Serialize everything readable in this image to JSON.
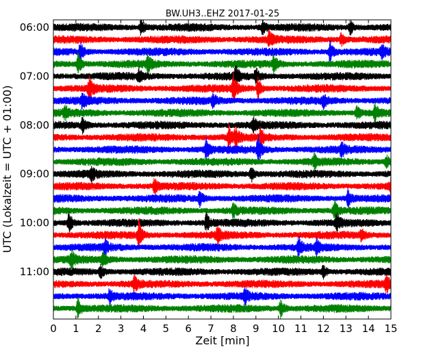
{
  "chart_data": {
    "type": "line",
    "title": "BW.UH3..EHZ 2017-01-25",
    "xlabel": "Zeit  [min]",
    "ylabel": "UTC (Lokalzeit = UTC + 01:00)",
    "xlim": [
      0,
      15
    ],
    "x_ticks": [
      0,
      1,
      2,
      3,
      4,
      5,
      6,
      7,
      8,
      9,
      10,
      11,
      12,
      13,
      14,
      15
    ],
    "x_tick_labels": [
      "0",
      "1",
      "2",
      "3",
      "4",
      "5",
      "6",
      "7",
      "8",
      "9",
      "10",
      "11",
      "12",
      "13",
      "14",
      "15"
    ],
    "y_ticks": [
      {
        "label": "06:00",
        "trace": 0
      },
      {
        "label": "07:00",
        "trace": 4
      },
      {
        "label": "08:00",
        "trace": 8
      },
      {
        "label": "09:00",
        "trace": 12
      },
      {
        "label": "10:00",
        "trace": 16
      },
      {
        "label": "11:00",
        "trace": 20
      }
    ],
    "trace_minutes": 15,
    "colors": [
      "#000000",
      "#ff0000",
      "#0000ff",
      "#008000"
    ],
    "traces": [
      {
        "start": "06:00",
        "color": "#000000",
        "events": [
          {
            "x": 3.9,
            "amp": 1.3
          },
          {
            "x": 9.3,
            "amp": 1.0
          },
          {
            "x": 13.2,
            "amp": 1.0
          }
        ]
      },
      {
        "start": "06:15",
        "color": "#ff0000",
        "events": [
          {
            "x": 9.6,
            "amp": 1.1
          },
          {
            "x": 12.8,
            "amp": 0.9
          }
        ]
      },
      {
        "start": "06:30",
        "color": "#0000ff",
        "events": [
          {
            "x": 1.2,
            "amp": 1.4
          },
          {
            "x": 12.3,
            "amp": 1.6
          },
          {
            "x": 14.6,
            "amp": 1.0
          }
        ]
      },
      {
        "start": "06:45",
        "color": "#008000",
        "events": [
          {
            "x": 1.1,
            "amp": 1.6
          },
          {
            "x": 4.2,
            "amp": 1.2
          },
          {
            "x": 9.8,
            "amp": 1.3
          }
        ]
      },
      {
        "start": "07:00",
        "color": "#000000",
        "events": [
          {
            "x": 3.8,
            "amp": 1.0
          },
          {
            "x": 8.1,
            "amp": 1.5
          },
          {
            "x": 9.0,
            "amp": 1.2
          }
        ]
      },
      {
        "start": "07:15",
        "color": "#ff0000",
        "events": [
          {
            "x": 1.6,
            "amp": 1.8
          },
          {
            "x": 8.0,
            "amp": 2.2
          },
          {
            "x": 9.1,
            "amp": 1.7
          }
        ]
      },
      {
        "start": "07:30",
        "color": "#0000ff",
        "events": [
          {
            "x": 1.3,
            "amp": 1.2
          },
          {
            "x": 7.1,
            "amp": 1.0
          },
          {
            "x": 12.0,
            "amp": 1.0
          }
        ]
      },
      {
        "start": "07:45",
        "color": "#008000",
        "events": [
          {
            "x": 0.5,
            "amp": 1.0
          },
          {
            "x": 13.5,
            "amp": 1.1
          },
          {
            "x": 14.3,
            "amp": 1.2
          }
        ]
      },
      {
        "start": "08:00",
        "color": "#000000",
        "events": [
          {
            "x": 1.3,
            "amp": 1.1
          },
          {
            "x": 8.9,
            "amp": 1.0
          }
        ]
      },
      {
        "start": "08:15",
        "color": "#ff0000",
        "events": [
          {
            "x": 7.8,
            "amp": 1.8
          },
          {
            "x": 8.1,
            "amp": 1.6
          },
          {
            "x": 9.2,
            "amp": 1.2
          }
        ]
      },
      {
        "start": "08:30",
        "color": "#0000ff",
        "events": [
          {
            "x": 6.8,
            "amp": 1.5
          },
          {
            "x": 9.1,
            "amp": 2.0
          },
          {
            "x": 12.8,
            "amp": 1.2
          }
        ]
      },
      {
        "start": "08:45",
        "color": "#008000",
        "events": [
          {
            "x": 11.6,
            "amp": 1.0
          },
          {
            "x": 14.8,
            "amp": 1.0
          }
        ]
      },
      {
        "start": "09:00",
        "color": "#000000",
        "events": [
          {
            "x": 8.8,
            "amp": 1.1
          },
          {
            "x": 1.7,
            "amp": 0.9
          }
        ]
      },
      {
        "start": "09:15",
        "color": "#ff0000",
        "events": [
          {
            "x": 4.5,
            "amp": 1.0
          },
          {
            "x": 15.0,
            "amp": 1.2
          }
        ]
      },
      {
        "start": "09:30",
        "color": "#0000ff",
        "events": [
          {
            "x": 6.5,
            "amp": 1.1
          },
          {
            "x": 13.1,
            "amp": 1.2
          }
        ]
      },
      {
        "start": "09:45",
        "color": "#008000",
        "events": [
          {
            "x": 12.5,
            "amp": 1.4
          },
          {
            "x": 8.0,
            "amp": 1.0
          }
        ]
      },
      {
        "start": "10:00",
        "color": "#000000",
        "events": [
          {
            "x": 0.7,
            "amp": 1.6
          },
          {
            "x": 6.8,
            "amp": 1.4
          },
          {
            "x": 12.6,
            "amp": 1.2
          }
        ]
      },
      {
        "start": "10:15",
        "color": "#ff0000",
        "events": [
          {
            "x": 3.8,
            "amp": 2.2
          },
          {
            "x": 7.3,
            "amp": 1.1
          },
          {
            "x": 13.7,
            "amp": 1.0
          }
        ]
      },
      {
        "start": "10:30",
        "color": "#0000ff",
        "events": [
          {
            "x": 10.9,
            "amp": 1.6
          },
          {
            "x": 11.7,
            "amp": 1.2
          },
          {
            "x": 2.3,
            "amp": 1.0
          }
        ]
      },
      {
        "start": "10:45",
        "color": "#008000",
        "events": [
          {
            "x": 0.8,
            "amp": 1.3
          },
          {
            "x": 2.2,
            "amp": 1.0
          }
        ]
      },
      {
        "start": "11:00",
        "color": "#000000",
        "events": [
          {
            "x": 2.1,
            "amp": 0.9
          },
          {
            "x": 12.0,
            "amp": 1.0
          }
        ]
      },
      {
        "start": "11:15",
        "color": "#ff0000",
        "events": [
          {
            "x": 3.6,
            "amp": 1.1
          },
          {
            "x": 14.8,
            "amp": 1.3
          }
        ]
      },
      {
        "start": "11:30",
        "color": "#0000ff",
        "events": [
          {
            "x": 2.5,
            "amp": 1.0
          },
          {
            "x": 8.5,
            "amp": 1.1
          }
        ]
      },
      {
        "start": "11:45",
        "color": "#008000",
        "events": [
          {
            "x": 1.1,
            "amp": 1.6
          },
          {
            "x": 10.1,
            "amp": 1.5
          }
        ]
      }
    ]
  }
}
